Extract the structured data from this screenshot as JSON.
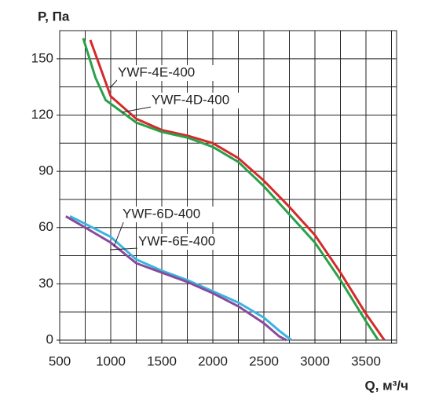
{
  "chart_data": {
    "type": "line",
    "y_label": "P, Па",
    "x_label": "Q, м³/ч",
    "xlim": [
      500,
      3800
    ],
    "ylim": [
      0,
      165
    ],
    "xticks": [
      500,
      1000,
      1500,
      2000,
      2500,
      3000,
      3500
    ],
    "yticks": [
      0,
      30,
      60,
      90,
      120,
      150
    ],
    "x_minor_grid": [
      750,
      1250,
      1750,
      2250,
      2750,
      3250,
      3750
    ],
    "y_minor_grid": [
      15,
      45,
      75,
      105,
      135
    ],
    "grid": true,
    "series": [
      {
        "name": "YWF-4E-400",
        "color": "#d42a2a",
        "x": [
          800,
          900,
          1000,
          1250,
          1500,
          1750,
          2000,
          2250,
          2500,
          2750,
          3000,
          3250,
          3500,
          3680
        ],
        "values": [
          160,
          145,
          130,
          118,
          112,
          109,
          105,
          97,
          85,
          71,
          56,
          36,
          14,
          0
        ]
      },
      {
        "name": "YWF-4D-400",
        "color": "#2aa04a",
        "x": [
          730,
          850,
          950,
          1250,
          1500,
          1750,
          2000,
          2250,
          2500,
          2750,
          3000,
          3250,
          3500,
          3620
        ],
        "values": [
          161,
          140,
          128,
          116,
          111,
          108,
          103,
          95,
          82,
          67,
          52,
          32,
          10,
          0
        ]
      },
      {
        "name": "YWF-6D-400",
        "color": "#3ab4e0",
        "x": [
          600,
          750,
          1000,
          1250,
          1500,
          1750,
          2000,
          2250,
          2500,
          2650,
          2770
        ],
        "values": [
          66,
          62,
          55,
          43,
          37,
          32,
          26,
          20,
          12,
          5,
          0
        ]
      },
      {
        "name": "YWF-6E-400",
        "color": "#8a4a9a",
        "x": [
          560,
          750,
          1000,
          1250,
          1500,
          1750,
          2000,
          2250,
          2500,
          2650,
          2720
        ],
        "values": [
          66,
          60,
          52,
          41,
          36,
          31,
          25,
          18,
          9,
          2,
          0
        ]
      }
    ]
  }
}
